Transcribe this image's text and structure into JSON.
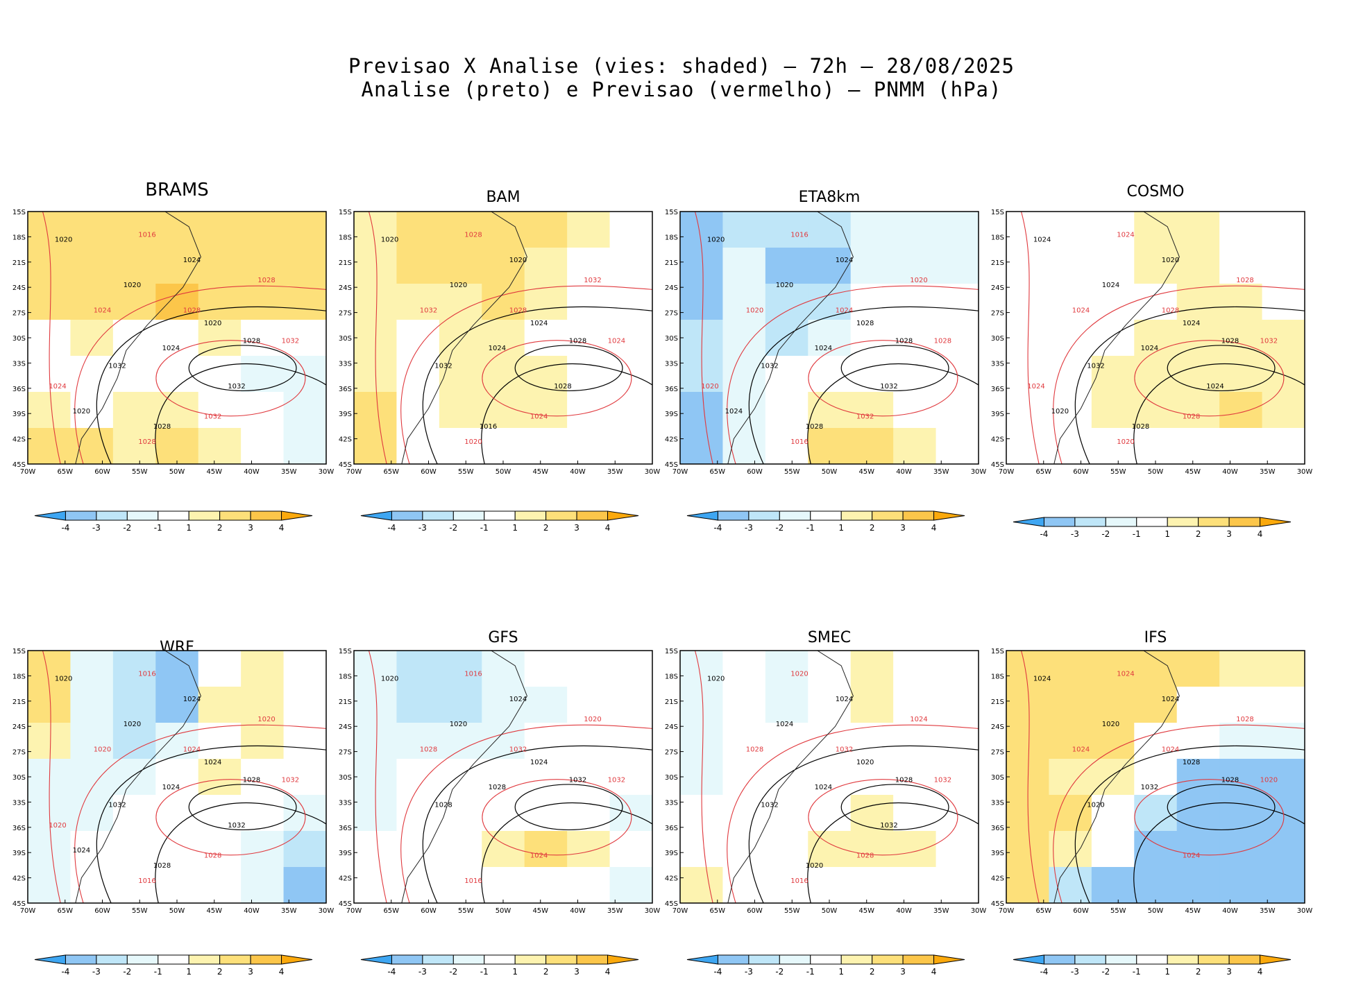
{
  "title": {
    "line1": "Previsao X Analise (vies: shaded) – 72h – 28/08/2025",
    "line2": "Analise (preto) e Previsao (vermelho) – PNMM (hPa)"
  },
  "axes": {
    "lat_labels": [
      "15S",
      "18S",
      "21S",
      "24S",
      "27S",
      "30S",
      "33S",
      "36S",
      "39S",
      "42S",
      "45S"
    ],
    "lon_labels": [
      "70W",
      "65W",
      "60W",
      "55W",
      "50W",
      "45W",
      "40W",
      "35W",
      "30W"
    ]
  },
  "colorbar": {
    "labels": [
      "-4",
      "-3",
      "-2",
      "-1",
      "1",
      "2",
      "3",
      "4"
    ],
    "colors": [
      "#3ea6f2",
      "#8fc6f4",
      "#bfe6f8",
      "#e6f8fb",
      "#ffffff",
      "#fdf3b0",
      "#fde07a",
      "#fcc64a",
      "#fba90c"
    ]
  },
  "contour_colors": {
    "analysis": "#000000",
    "forecast": "#e0393e"
  },
  "models": [
    {
      "name": "BRAMS",
      "bias": [
        [
          3,
          3,
          3,
          3,
          3,
          3,
          3
        ],
        [
          3,
          3,
          3,
          3,
          3,
          3,
          3
        ],
        [
          3,
          3,
          3,
          4,
          3,
          3,
          3
        ],
        [
          1,
          2,
          1,
          1,
          2,
          1,
          1
        ],
        [
          1,
          1,
          1,
          1,
          1,
          -1,
          -1
        ],
        [
          2,
          1,
          2,
          2,
          1,
          1,
          -1
        ],
        [
          3,
          3,
          2,
          3,
          2,
          1,
          0
        ]
      ],
      "analysis_labels": [
        "1020",
        "1020",
        "1024",
        "1020",
        "1024",
        "1028",
        "1032",
        "1032",
        "1028",
        "1020"
      ],
      "forecast_labels": [
        "1016",
        "1028",
        "1024",
        "1028",
        "1032",
        "1032",
        "1028",
        "1024"
      ]
    },
    {
      "name": "BAM",
      "bias": [
        [
          2,
          3,
          3,
          3,
          3,
          2,
          1
        ],
        [
          2,
          3,
          3,
          3,
          2,
          1,
          1
        ],
        [
          2,
          2,
          2,
          3,
          2,
          1,
          1
        ],
        [
          2,
          1,
          2,
          2,
          1,
          1,
          1
        ],
        [
          2,
          1,
          2,
          2,
          2,
          1,
          1
        ],
        [
          3,
          1,
          2,
          2,
          2,
          1,
          1
        ],
        [
          3,
          1,
          1,
          1,
          1,
          1,
          1
        ]
      ],
      "analysis_labels": [
        "1020",
        "1020",
        "1020",
        "1024",
        "1024",
        "1028",
        "1032",
        "1028",
        "1016"
      ],
      "forecast_labels": [
        "1028",
        "1032",
        "1032",
        "1028",
        "1024",
        "1024",
        "1020"
      ]
    },
    {
      "name": "ETA8km",
      "bias": [
        [
          -3,
          -2,
          -2,
          -2,
          -1,
          -1,
          -1
        ],
        [
          -3,
          -1,
          -3,
          -3,
          -1,
          -1,
          -1
        ],
        [
          -3,
          -1,
          -2,
          -2,
          1,
          1,
          1
        ],
        [
          -2,
          -1,
          -2,
          -1,
          1,
          1,
          1
        ],
        [
          -2,
          -1,
          1,
          1,
          1,
          1,
          1
        ],
        [
          -3,
          -1,
          1,
          2,
          2,
          1,
          1
        ],
        [
          -3,
          -1,
          1,
          3,
          3,
          2,
          1
        ]
      ],
      "analysis_labels": [
        "1020",
        "1020",
        "1024",
        "1028",
        "1024",
        "1028",
        "1032",
        "1032",
        "1028",
        "1024"
      ],
      "forecast_labels": [
        "1016",
        "1020",
        "1020",
        "1024",
        "1028",
        "1032",
        "1016",
        "1020"
      ]
    },
    {
      "name": "COSMO",
      "bias": [
        [
          1,
          1,
          1,
          2,
          2,
          1,
          1
        ],
        [
          1,
          1,
          1,
          2,
          2,
          1,
          1
        ],
        [
          1,
          1,
          1,
          1,
          2,
          2,
          1
        ],
        [
          1,
          1,
          1,
          2,
          2,
          2,
          2
        ],
        [
          1,
          1,
          2,
          2,
          2,
          2,
          2
        ],
        [
          1,
          1,
          2,
          2,
          2,
          3,
          2
        ],
        [
          1,
          1,
          1,
          1,
          1,
          1,
          1
        ]
      ],
      "analysis_labels": [
        "1024",
        "1024",
        "1020",
        "1024",
        "1024",
        "1028",
        "1032",
        "1024",
        "1028",
        "1020"
      ],
      "forecast_labels": [
        "1024",
        "1028",
        "1024",
        "1028",
        "1032",
        "1028",
        "1020",
        "1024"
      ]
    },
    {
      "name": "WRF",
      "bias": [
        [
          3,
          -1,
          -2,
          -3,
          1,
          2,
          1
        ],
        [
          3,
          -1,
          -2,
          -3,
          2,
          2,
          1
        ],
        [
          2,
          -1,
          -2,
          -1,
          1,
          2,
          1
        ],
        [
          -1,
          -1,
          -1,
          1,
          2,
          1,
          1
        ],
        [
          -1,
          -1,
          1,
          1,
          1,
          1,
          -1
        ],
        [
          -1,
          1,
          1,
          1,
          1,
          -1,
          -2
        ],
        [
          -1,
          1,
          1,
          1,
          1,
          -1,
          -3
        ]
      ],
      "analysis_labels": [
        "1020",
        "1020",
        "1024",
        "1024",
        "1024",
        "1028",
        "1032",
        "1032",
        "1028",
        "1024"
      ],
      "forecast_labels": [
        "1016",
        "1020",
        "1020",
        "1024",
        "1032",
        "1028",
        "1016",
        "1020"
      ]
    },
    {
      "name": "GFS",
      "bias": [
        [
          -1,
          -2,
          -2,
          -1,
          1,
          1,
          1
        ],
        [
          -1,
          -2,
          -2,
          -1,
          -1,
          1,
          1
        ],
        [
          -1,
          -1,
          -1,
          -1,
          1,
          1,
          1
        ],
        [
          -1,
          1,
          1,
          1,
          1,
          1,
          1
        ],
        [
          -1,
          1,
          1,
          1,
          1,
          1,
          -1
        ],
        [
          1,
          1,
          1,
          2,
          3,
          2,
          1
        ],
        [
          1,
          1,
          1,
          1,
          1,
          1,
          -1
        ]
      ],
      "analysis_labels": [
        "1020",
        "1020",
        "1024",
        "1024",
        "1028",
        "1032",
        "1028"
      ],
      "forecast_labels": [
        "1016",
        "1020",
        "1028",
        "1032",
        "1032",
        "1024",
        "1016"
      ]
    },
    {
      "name": "SMEC",
      "bias": [
        [
          -1,
          1,
          -1,
          1,
          2,
          1,
          1
        ],
        [
          -1,
          1,
          -1,
          1,
          2,
          1,
          1
        ],
        [
          -1,
          1,
          1,
          1,
          1,
          1,
          1
        ],
        [
          -1,
          1,
          1,
          1,
          1,
          1,
          1
        ],
        [
          1,
          1,
          1,
          1,
          2,
          1,
          1
        ],
        [
          1,
          1,
          1,
          2,
          2,
          2,
          1
        ],
        [
          2,
          1,
          1,
          1,
          1,
          1,
          1
        ]
      ],
      "analysis_labels": [
        "1020",
        "1024",
        "1024",
        "1020",
        "1024",
        "1028",
        "1032",
        "1032",
        "1020"
      ],
      "forecast_labels": [
        "1020",
        "1024",
        "1028",
        "1032",
        "1032",
        "1028",
        "1016"
      ]
    },
    {
      "name": "IFS",
      "bias": [
        [
          3,
          3,
          3,
          3,
          3,
          2,
          2
        ],
        [
          3,
          3,
          3,
          3,
          1,
          1,
          1
        ],
        [
          3,
          3,
          3,
          1,
          1,
          -1,
          -1
        ],
        [
          3,
          2,
          2,
          1,
          -3,
          -3,
          -3
        ],
        [
          3,
          3,
          1,
          -2,
          -3,
          -3,
          -3
        ],
        [
          3,
          2,
          1,
          -3,
          -3,
          -3,
          -3
        ],
        [
          3,
          -2,
          -3,
          -3,
          -3,
          -3,
          -3
        ]
      ],
      "analysis_labels": [
        "1024",
        "1020",
        "1024",
        "1028",
        "1032",
        "1028",
        "1020"
      ],
      "forecast_labels": [
        "1024",
        "1028",
        "1024",
        "1024",
        "1020",
        "1024"
      ]
    }
  ]
}
